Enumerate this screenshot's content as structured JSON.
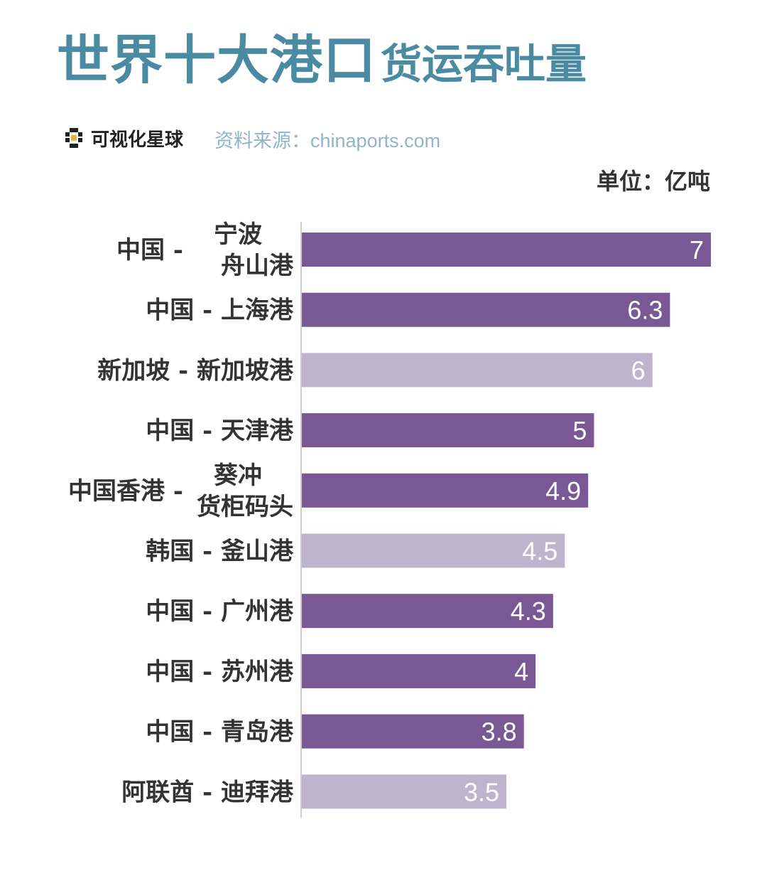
{
  "title": {
    "main": "世界十大港口",
    "sub": "货运吞吐量"
  },
  "brand": {
    "name": "可视化星球",
    "logo_icon": "visual-planet-logo-icon"
  },
  "source": "资料来源：chinaports.com",
  "unit": "单位：亿吨",
  "colors": {
    "title": "#4a8ba3",
    "primary_bar": "#7a5895",
    "secondary_bar": "#bdb5cd",
    "source_text": "#8fb5c6"
  },
  "chart_data": {
    "type": "bar",
    "orientation": "horizontal",
    "categories": [
      "中国 - 宁波舟山港",
      "中国 - 上海港",
      "新加坡 - 新加坡港",
      "中国 - 天津港",
      "中国香港 - 葵冲货柜码头",
      "韩国 - 釜山港",
      "中国 - 广州港",
      "中国 - 苏州港",
      "中国 - 青岛港",
      "阿联酋 - 迪拜港"
    ],
    "values": [
      7,
      6.3,
      6,
      5,
      4.9,
      4.5,
      4.3,
      4,
      3.8,
      3.5
    ],
    "value_labels": [
      "7",
      "6.3",
      "6",
      "5",
      "4.9",
      "4.5",
      "4.3",
      "4",
      "3.8",
      "3.5"
    ],
    "highlight": [
      true,
      true,
      false,
      true,
      true,
      false,
      true,
      true,
      true,
      false
    ],
    "xlim": [
      0,
      7
    ],
    "grid": false,
    "legend": "none",
    "title": "世界十大港口货运吞吐量"
  }
}
